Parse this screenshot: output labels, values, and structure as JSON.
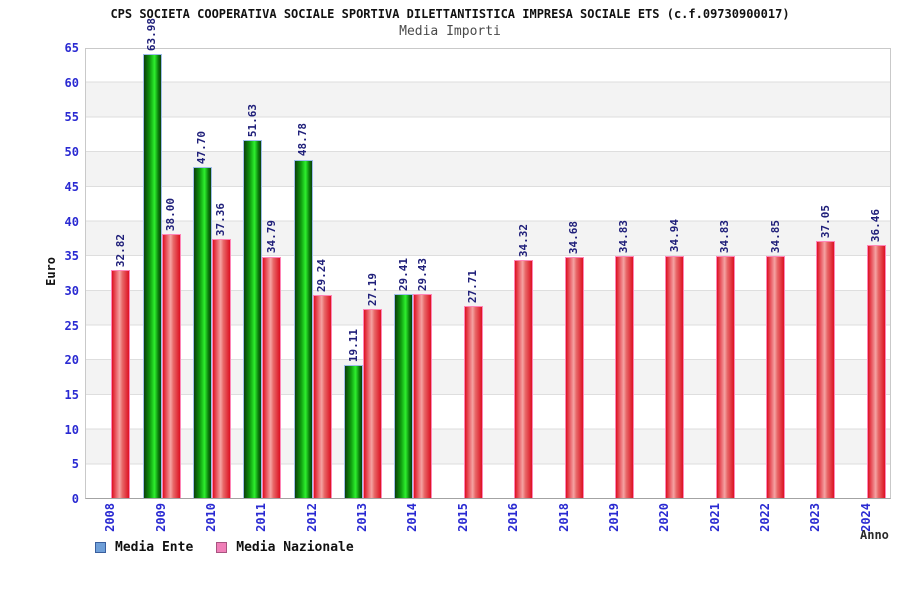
{
  "header": {
    "title": "CPS SOCIETA COOPERATIVA SOCIALE SPORTIVA DILETTANTISTICA IMPRESA SOCIALE ETS (c.f.09730900017)",
    "subtitle": "Media Importi"
  },
  "axes": {
    "y_title": "Euro",
    "x_title": "Anno"
  },
  "legend": {
    "items": [
      {
        "label": "Media Ente",
        "swatch_fill": "#6f9fd8",
        "swatch_border": "#3a5f9e"
      },
      {
        "label": "Media Nazionale",
        "swatch_fill": "#f07fb8",
        "swatch_border": "#a85480"
      }
    ]
  },
  "chart_data": {
    "type": "bar",
    "title": "CPS SOCIETA COOPERATIVA SOCIALE SPORTIVA DILETTANTISTICA IMPRESA SOCIALE ETS (c.f.09730900017)",
    "subtitle": "Media Importi",
    "xlabel": "Anno",
    "ylabel": "Euro",
    "ylim": [
      0,
      65
    ],
    "ytick_step": 5,
    "grid": "horizontal-bands",
    "legend_position": "bottom-left",
    "categories": [
      "2008",
      "2009",
      "2010",
      "2011",
      "2012",
      "2013",
      "2014",
      "2015",
      "2016",
      "2018",
      "2019",
      "2020",
      "2021",
      "2022",
      "2023",
      "2024"
    ],
    "series": [
      {
        "name": "Media Ente",
        "bar_color": "green-gradient",
        "values": [
          null,
          63.98,
          47.7,
          51.63,
          48.78,
          19.11,
          29.41,
          null,
          null,
          null,
          null,
          null,
          null,
          null,
          null,
          null
        ]
      },
      {
        "name": "Media Nazionale",
        "bar_color": "red-gradient",
        "values": [
          32.82,
          38.0,
          37.36,
          34.79,
          29.24,
          27.19,
          29.43,
          27.71,
          34.32,
          34.68,
          34.83,
          34.94,
          34.83,
          34.85,
          37.05,
          36.46
        ]
      }
    ]
  }
}
